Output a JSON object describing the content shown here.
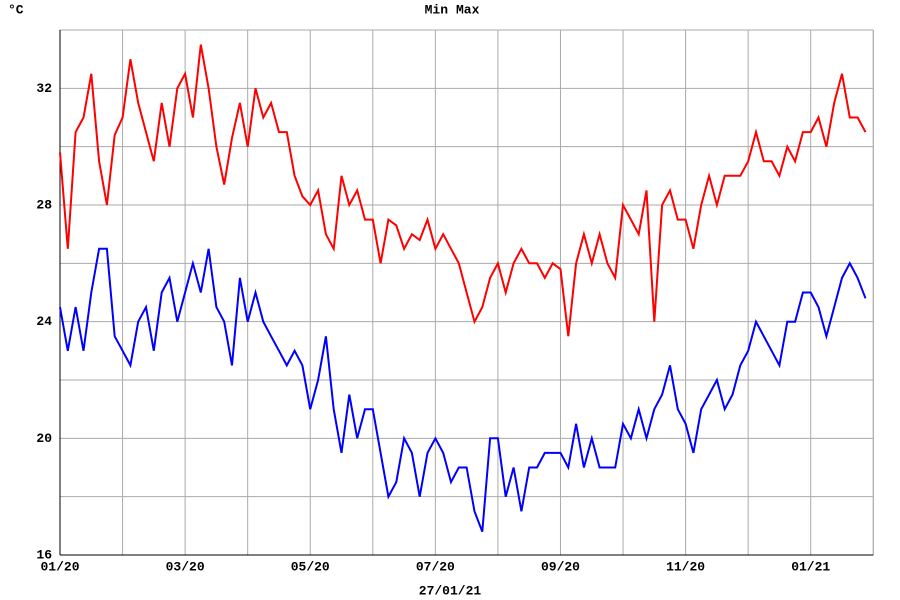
{
  "chart_data": {
    "type": "line",
    "y_label": "°C",
    "annotation": "27/01/21",
    "categories": [
      "01/20",
      null,
      null,
      null,
      null,
      null,
      null,
      null,
      null,
      null,
      null,
      null,
      null,
      null,
      null,
      null,
      "03/20",
      null,
      null,
      null,
      null,
      null,
      null,
      null,
      null,
      null,
      null,
      null,
      null,
      null,
      null,
      null,
      "05/20",
      null,
      null,
      null,
      null,
      null,
      null,
      null,
      null,
      null,
      null,
      null,
      null,
      null,
      null,
      null,
      "07/20",
      null,
      null,
      null,
      null,
      null,
      null,
      null,
      null,
      null,
      null,
      null,
      null,
      null,
      null,
      null,
      "09/20",
      null,
      null,
      null,
      null,
      null,
      null,
      null,
      null,
      null,
      null,
      null,
      null,
      null,
      null,
      null,
      "11/20",
      null,
      null,
      null,
      null,
      null,
      null,
      null,
      null,
      null,
      null,
      null,
      null,
      null,
      null,
      null,
      "01/21",
      null,
      null,
      null,
      null,
      null,
      null,
      null
    ],
    "series": [
      {
        "name": "Min",
        "color": "#0000ff",
        "values": [
          24.5,
          23,
          24.5,
          23,
          25,
          26.5,
          26.5,
          23.5,
          23,
          22.5,
          24,
          24.5,
          23,
          25,
          25.5,
          24,
          25,
          26,
          25,
          26.5,
          24.5,
          24,
          22.5,
          25.5,
          24,
          25,
          24,
          23.5,
          23,
          22.5,
          23,
          22.5,
          21,
          22,
          23.5,
          21,
          19.5,
          21.5,
          20,
          21,
          21,
          19.5,
          18,
          18.5,
          20,
          19.5,
          18,
          19.5,
          20,
          19.5,
          18.5,
          19,
          19,
          17.5,
          16.8,
          20,
          20,
          18,
          19,
          17.5,
          19,
          19,
          19.5,
          19.5,
          19.5,
          19,
          20.5,
          19,
          20,
          19,
          19,
          19,
          20.5,
          20,
          21,
          20,
          21,
          21.5,
          22.5,
          21,
          20.5,
          19.5,
          21,
          21.5,
          22,
          21,
          21.5,
          22.5,
          23,
          24,
          23.5,
          23,
          22.5,
          24,
          24,
          25,
          25,
          24.5,
          23.5,
          24.5,
          25.5,
          26,
          25.5,
          24.8
        ]
      },
      {
        "name": "Max",
        "color": "#ff0000",
        "values": [
          29.8,
          26.5,
          30.5,
          31,
          32.5,
          29.5,
          28,
          30.4,
          31,
          33,
          31.5,
          30.5,
          29.5,
          31.5,
          30,
          32,
          32.5,
          31,
          33.5,
          32,
          30,
          28.7,
          30.3,
          31.5,
          30,
          32,
          31,
          31.5,
          30.5,
          30.5,
          29,
          28.3,
          28,
          28.5,
          27,
          26.5,
          29,
          28,
          28.5,
          27.5,
          27.5,
          26,
          27.5,
          27.3,
          26.5,
          27,
          26.8,
          27.5,
          26.5,
          27,
          26.5,
          26,
          25,
          24,
          24.5,
          25.5,
          26,
          25,
          26,
          26.5,
          26,
          26,
          25.5,
          26,
          25.8,
          23.5,
          26,
          27,
          26,
          27,
          26,
          25.5,
          28,
          27.5,
          27,
          28.5,
          24,
          28,
          28.5,
          27.5,
          27.5,
          26.5,
          28,
          29,
          28,
          29,
          29,
          29,
          29.5,
          30.5,
          29.5,
          29.5,
          29,
          30,
          29.5,
          30.5,
          30.5,
          31,
          30,
          31.5,
          32.5,
          31,
          31,
          30.5
        ]
      }
    ],
    "ylim": [
      16,
      34
    ],
    "yticks": [
      16,
      20,
      24,
      28,
      32
    ],
    "minor_yticks": [
      18,
      22,
      26,
      30,
      34
    ],
    "grid": true
  }
}
